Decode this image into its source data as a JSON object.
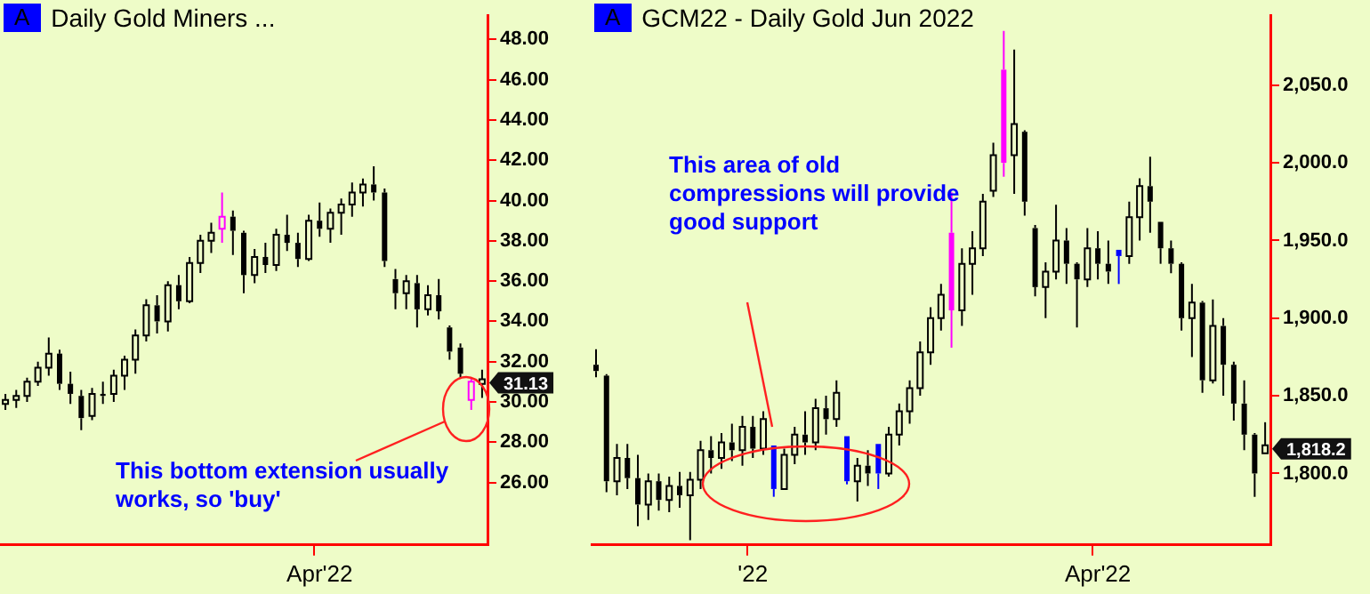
{
  "chart_data": [
    {
      "type": "candlestick",
      "title": "Daily  Gold Miners ...",
      "categories": [
        null,
        null,
        null,
        null,
        null,
        null,
        null,
        null,
        null,
        null,
        null,
        null,
        null,
        null,
        null,
        null,
        null,
        null,
        null,
        null,
        null,
        null,
        null,
        null,
        null,
        null,
        null,
        null,
        null,
        "Apr'22",
        null,
        null,
        null,
        null,
        null,
        null,
        null,
        null,
        null,
        null,
        null,
        null,
        null,
        null,
        null
      ],
      "ohlc": [
        [
          29.9,
          30.4,
          29.6,
          30.1
        ],
        [
          30.1,
          30.6,
          29.7,
          30.3
        ],
        [
          30.3,
          31.2,
          30.0,
          31.0
        ],
        [
          31.0,
          32.0,
          30.8,
          31.7
        ],
        [
          31.7,
          33.2,
          31.3,
          32.4
        ],
        [
          32.4,
          32.6,
          30.6,
          30.9
        ],
        [
          30.9,
          31.5,
          29.9,
          30.4
        ],
        [
          30.3,
          30.6,
          28.6,
          29.2
        ],
        [
          29.3,
          30.7,
          29.1,
          30.4
        ],
        [
          30.4,
          31.0,
          29.9,
          30.3
        ],
        [
          30.4,
          31.6,
          30.0,
          31.3
        ],
        [
          31.3,
          32.3,
          30.6,
          32.1
        ],
        [
          32.1,
          33.6,
          31.4,
          33.3
        ],
        [
          33.3,
          35.1,
          33.0,
          34.8
        ],
        [
          34.8,
          35.3,
          33.4,
          34.0
        ],
        [
          34.0,
          36.0,
          33.5,
          35.8
        ],
        [
          35.8,
          36.3,
          34.6,
          35.0
        ],
        [
          35.0,
          37.2,
          34.9,
          36.9
        ],
        [
          36.9,
          38.3,
          36.4,
          38.0
        ],
        [
          38.0,
          38.9,
          37.4,
          38.4
        ],
        [
          38.6,
          40.4,
          37.9,
          39.2
        ],
        [
          39.2,
          39.5,
          37.3,
          38.5
        ],
        [
          38.4,
          38.5,
          35.4,
          36.3
        ],
        [
          36.3,
          37.6,
          35.9,
          37.2
        ],
        [
          37.2,
          37.9,
          36.4,
          36.8
        ],
        [
          36.8,
          38.6,
          36.5,
          38.3
        ],
        [
          38.3,
          39.3,
          37.5,
          37.9
        ],
        [
          37.9,
          38.4,
          36.7,
          37.1
        ],
        [
          37.1,
          39.3,
          37.0,
          39.0
        ],
        [
          39.0,
          39.9,
          38.2,
          38.6
        ],
        [
          38.6,
          39.6,
          37.9,
          39.4
        ],
        [
          39.4,
          40.1,
          38.3,
          39.8
        ],
        [
          39.8,
          40.9,
          39.2,
          40.4
        ],
        [
          40.4,
          41.1,
          39.7,
          40.8
        ],
        [
          40.8,
          41.7,
          40.0,
          40.4
        ],
        [
          40.4,
          40.6,
          36.7,
          37.0
        ],
        [
          36.1,
          36.6,
          34.6,
          35.4
        ],
        [
          35.4,
          36.3,
          34.6,
          36.0
        ],
        [
          35.9,
          36.3,
          33.7,
          34.6
        ],
        [
          34.6,
          35.8,
          34.3,
          35.3
        ],
        [
          35.3,
          36.1,
          34.1,
          34.5
        ],
        [
          33.7,
          33.8,
          32.1,
          32.5
        ],
        [
          32.7,
          32.9,
          31.2,
          31.4
        ],
        [
          30.1,
          31.2,
          29.6,
          31.0
        ],
        [
          30.9,
          31.6,
          30.2,
          31.13
        ]
      ],
      "colors": [
        "#000000",
        "#000000",
        "#000000",
        "#000000",
        "#000000",
        "#000000",
        "#000000",
        "#000000",
        "#000000",
        "#000000",
        "#000000",
        "#000000",
        "#000000",
        "#000000",
        "#000000",
        "#000000",
        "#000000",
        "#000000",
        "#000000",
        "#000000",
        "#ff00ff",
        "#000000",
        "#000000",
        "#000000",
        "#000000",
        "#000000",
        "#000000",
        "#000000",
        "#000000",
        "#000000",
        "#000000",
        "#000000",
        "#000000",
        "#000000",
        "#000000",
        "#000000",
        "#000000",
        "#000000",
        "#000000",
        "#000000",
        "#000000",
        "#000000",
        "#000000",
        "#ff00ff",
        "#000000"
      ],
      "ylim": [
        22.9,
        49.2
      ],
      "yticks": [
        {
          "value": 26,
          "label": "26.00"
        },
        {
          "value": 28,
          "label": "28.00"
        },
        {
          "value": 30,
          "label": "30.00"
        },
        {
          "value": 32,
          "label": "32.00"
        },
        {
          "value": 34,
          "label": "34.00"
        },
        {
          "value": 36,
          "label": "36.00"
        },
        {
          "value": 38,
          "label": "38.00"
        },
        {
          "value": 40,
          "label": "40.00"
        },
        {
          "value": 42,
          "label": "42.00"
        },
        {
          "value": 44,
          "label": "44.00"
        },
        {
          "value": 46,
          "label": "46.00"
        },
        {
          "value": 48,
          "label": "48.00"
        }
      ],
      "annotations": [
        "A",
        "This bottom extension usually works, so 'buy'",
        "31.13"
      ]
    },
    {
      "type": "candlestick",
      "title": "GCM22 - Daily  Gold Jun 2022",
      "categories": [
        null,
        null,
        null,
        null,
        null,
        null,
        null,
        null,
        null,
        null,
        null,
        null,
        null,
        null,
        null,
        "'22",
        null,
        null,
        null,
        null,
        null,
        null,
        null,
        null,
        null,
        null,
        null,
        null,
        null,
        null,
        null,
        null,
        null,
        null,
        null,
        null,
        null,
        null,
        null,
        null,
        null,
        null,
        null,
        null,
        null,
        null,
        null,
        null,
        "Apr'22",
        null,
        null,
        null,
        null,
        null,
        null,
        null,
        null,
        null,
        null,
        null,
        null,
        null,
        null,
        null,
        null
      ],
      "ohlc": [
        [
          1870,
          1880,
          1862,
          1866
        ],
        [
          1863,
          1864,
          1788,
          1795
        ],
        [
          1795,
          1819,
          1786,
          1810
        ],
        [
          1810,
          1819,
          1790,
          1797
        ],
        [
          1797,
          1812,
          1766,
          1780
        ],
        [
          1780,
          1800,
          1770,
          1795
        ],
        [
          1795,
          1800,
          1776,
          1783
        ],
        [
          1783,
          1798,
          1775,
          1792
        ],
        [
          1792,
          1801,
          1778,
          1786
        ],
        [
          1786,
          1801,
          1757,
          1796
        ],
        [
          1796,
          1821,
          1790,
          1815
        ],
        [
          1815,
          1824,
          1800,
          1810
        ],
        [
          1810,
          1826,
          1803,
          1820
        ],
        [
          1820,
          1832,
          1808,
          1815
        ],
        [
          1815,
          1837,
          1805,
          1830
        ],
        [
          1830,
          1837,
          1810,
          1816
        ],
        [
          1816,
          1840,
          1812,
          1835
        ],
        [
          1818,
          1818,
          1785,
          1790
        ],
        [
          1790,
          1816,
          1790,
          1812
        ],
        [
          1812,
          1830,
          1806,
          1825
        ],
        [
          1825,
          1840,
          1812,
          1820
        ],
        [
          1820,
          1848,
          1815,
          1842
        ],
        [
          1842,
          1850,
          1825,
          1835
        ],
        [
          1835,
          1860,
          1830,
          1852
        ],
        [
          1824,
          1824,
          1793,
          1795
        ],
        [
          1795,
          1810,
          1782,
          1805
        ],
        [
          1805,
          1815,
          1792,
          1800
        ],
        [
          1819,
          1819,
          1790,
          1800
        ],
        [
          1800,
          1830,
          1798,
          1825
        ],
        [
          1825,
          1845,
          1818,
          1840
        ],
        [
          1840,
          1860,
          1832,
          1855
        ],
        [
          1855,
          1885,
          1850,
          1878
        ],
        [
          1878,
          1907,
          1870,
          1900
        ],
        [
          1900,
          1922,
          1892,
          1915
        ],
        [
          1955,
          1981,
          1881,
          1905
        ],
        [
          1905,
          1945,
          1895,
          1935
        ],
        [
          1935,
          1956,
          1915,
          1945
        ],
        [
          1945,
          1980,
          1940,
          1975
        ],
        [
          1982,
          2013,
          1978,
          2005
        ],
        [
          2060,
          2085,
          1991,
          2000
        ],
        [
          2005,
          2073,
          1980,
          2025
        ],
        [
          2020,
          2021,
          1966,
          1975
        ],
        [
          1958,
          1960,
          1914,
          1920
        ],
        [
          1920,
          1936,
          1900,
          1930
        ],
        [
          1930,
          1973,
          1925,
          1950
        ],
        [
          1950,
          1958,
          1922,
          1935
        ],
        [
          1935,
          1936,
          1894,
          1925
        ],
        [
          1925,
          1958,
          1920,
          1945
        ],
        [
          1945,
          1956,
          1925,
          1935
        ],
        [
          1935,
          1950,
          1922,
          1930
        ],
        [
          1944,
          1944,
          1922,
          1940
        ],
        [
          1940,
          1975,
          1935,
          1965
        ],
        [
          1965,
          1990,
          1950,
          1985
        ],
        [
          1985,
          2004,
          1955,
          1975
        ],
        [
          1962,
          1962,
          1935,
          1945
        ],
        [
          1945,
          1950,
          1929,
          1935
        ],
        [
          1935,
          1936,
          1892,
          1900
        ],
        [
          1900,
          1922,
          1875,
          1910
        ],
        [
          1910,
          1911,
          1852,
          1860
        ],
        [
          1860,
          1912,
          1858,
          1895
        ],
        [
          1895,
          1900,
          1850,
          1870
        ],
        [
          1870,
          1872,
          1834,
          1845
        ],
        [
          1845,
          1860,
          1815,
          1825
        ],
        [
          1825,
          1826,
          1785,
          1800
        ],
        [
          1813,
          1833,
          1813,
          1818.2
        ]
      ],
      "colors": [
        "#000000",
        "#000000",
        "#000000",
        "#000000",
        "#000000",
        "#000000",
        "#000000",
        "#000000",
        "#000000",
        "#000000",
        "#000000",
        "#000000",
        "#000000",
        "#000000",
        "#000000",
        "#000000",
        "#000000",
        "#0000ff",
        "#000000",
        "#000000",
        "#000000",
        "#000000",
        "#000000",
        "#000000",
        "#0000ff",
        "#000000",
        "#000000",
        "#0000ff",
        "#000000",
        "#000000",
        "#000000",
        "#000000",
        "#000000",
        "#000000",
        "#ff00ff",
        "#000000",
        "#000000",
        "#000000",
        "#000000",
        "#ff00ff",
        "#000000",
        "#000000",
        "#000000",
        "#000000",
        "#000000",
        "#000000",
        "#000000",
        "#000000",
        "#000000",
        "#000000",
        "#0000ff",
        "#000000",
        "#000000",
        "#000000",
        "#000000",
        "#000000",
        "#000000",
        "#000000",
        "#000000",
        "#000000",
        "#000000",
        "#000000",
        "#000000",
        "#000000",
        "#000000"
      ],
      "ylim": [
        1754,
        2095
      ],
      "yticks": [
        {
          "value": 1800,
          "label": "1,800.0"
        },
        {
          "value": 1850,
          "label": "1,850.0"
        },
        {
          "value": 1900,
          "label": "1,900.0"
        },
        {
          "value": 1950,
          "label": "1,950.0"
        },
        {
          "value": 2000,
          "label": "2,000.0"
        },
        {
          "value": 2050,
          "label": "2,050.0"
        }
      ],
      "annotations": [
        "A",
        "This area of old compressions will provide good support",
        "1,818.2"
      ]
    }
  ]
}
